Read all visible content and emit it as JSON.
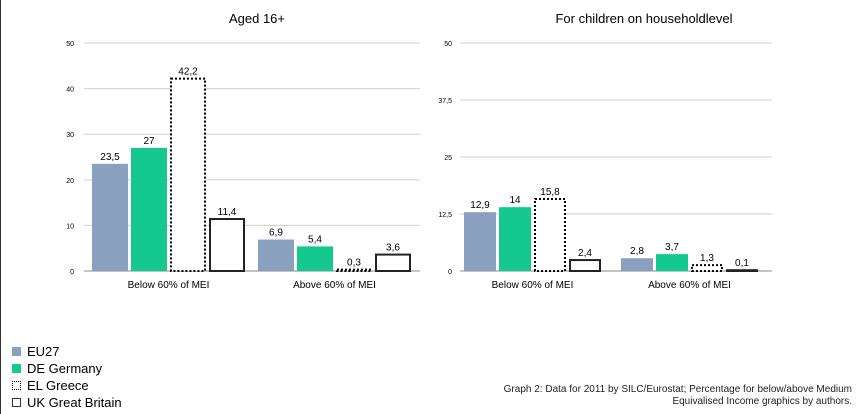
{
  "legend": {
    "items": [
      {
        "label": "EU27",
        "color": "#8aa0bf",
        "style": "solid"
      },
      {
        "label": "DE Germany",
        "color": "#15c98e",
        "style": "solid"
      },
      {
        "label": "EL Greece",
        "color": "#000000",
        "style": "dotted"
      },
      {
        "label": "UK Great Britain",
        "color": "#333333",
        "style": "outline"
      }
    ]
  },
  "caption": {
    "line1": "Graph 2: Data for 2011 by SILC/Eurostat; Percentage for below/above Medium",
    "line2": "Equivalised Income graphics by authors."
  },
  "chart_data": [
    {
      "type": "bar",
      "title": "Aged 16+",
      "categories": [
        "Below 60% of MEI",
        "Above 60% of MEI"
      ],
      "series": [
        {
          "name": "EU27",
          "values": [
            23.5,
            6.9
          ],
          "labels": [
            "23,5",
            "6,9"
          ]
        },
        {
          "name": "DE Germany",
          "values": [
            27,
            5.4
          ],
          "labels": [
            "27",
            "5,4"
          ]
        },
        {
          "name": "EL Greece",
          "values": [
            42.2,
            0.3
          ],
          "labels": [
            "42,2",
            "0,3"
          ]
        },
        {
          "name": "UK Great Britain",
          "values": [
            11.4,
            3.6
          ],
          "labels": [
            "11,4",
            "3,6"
          ]
        }
      ],
      "ylim": [
        0,
        50
      ],
      "yticks": [
        0,
        10,
        20,
        30,
        40,
        50
      ],
      "ytick_labels": [
        "0",
        "10",
        "20",
        "30",
        "40",
        "50"
      ],
      "grid": true
    },
    {
      "type": "bar",
      "title": "For children on householdlevel",
      "categories": [
        "Below 60% of MEI",
        "Above 60% of MEI"
      ],
      "series": [
        {
          "name": "EU27",
          "values": [
            12.9,
            2.8
          ],
          "labels": [
            "12,9",
            "2,8"
          ]
        },
        {
          "name": "DE Germany",
          "values": [
            14,
            3.7
          ],
          "labels": [
            "14",
            "3,7"
          ]
        },
        {
          "name": "EL Greece",
          "values": [
            15.8,
            1.3
          ],
          "labels": [
            "15,8",
            "1,3"
          ]
        },
        {
          "name": "UK Great Britain",
          "values": [
            2.4,
            0.1
          ],
          "labels": [
            "2,4",
            "0,1"
          ]
        }
      ],
      "ylim": [
        0,
        50
      ],
      "yticks": [
        0,
        12.5,
        25,
        37.5,
        50
      ],
      "ytick_labels": [
        "0",
        "12,5",
        "25",
        "37,5",
        "50"
      ],
      "grid": true
    }
  ]
}
